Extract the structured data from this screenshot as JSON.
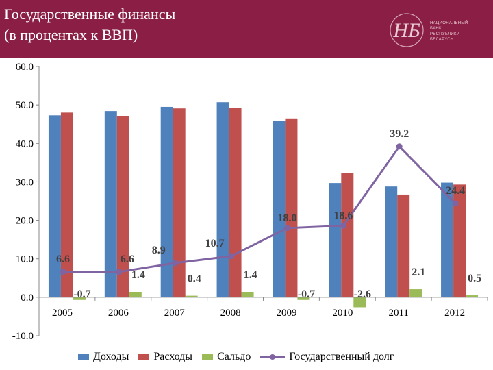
{
  "header": {
    "title_line1": "Государственные финансы",
    "title_line2": "(в процентах к ВВП)",
    "logo_monogram": "НБ",
    "logo_text": [
      "НАЦИОНАЛЬНЫЙ",
      "БАНК",
      "РЕСПУБЛИКИ",
      "БЕЛАРУСЬ"
    ]
  },
  "colors": {
    "banner": "#8a1e44",
    "revenue": "#4f81bd",
    "expenditure": "#c0504d",
    "balance": "#9bbb59",
    "debt": "#8064a2"
  },
  "chart_data": {
    "type": "bar",
    "categories": [
      "2005",
      "2006",
      "2007",
      "2008",
      "2009",
      "2010",
      "2011",
      "2012"
    ],
    "series": [
      {
        "name": "Доходы",
        "type": "bar",
        "values": [
          47.3,
          48.4,
          49.5,
          50.7,
          45.8,
          29.7,
          28.8,
          29.8
        ]
      },
      {
        "name": "Расходы",
        "type": "bar",
        "values": [
          48.0,
          47.0,
          49.1,
          49.3,
          46.5,
          32.3,
          26.7,
          29.3
        ]
      },
      {
        "name": "Сальдо",
        "type": "bar",
        "values": [
          -0.7,
          1.4,
          0.4,
          1.4,
          -0.7,
          -2.6,
          2.1,
          0.5
        ],
        "labels": [
          "-0.7",
          "1.4",
          "0.4",
          "1.4",
          "-0.7",
          "-2.6",
          "2.1",
          "0.5"
        ]
      },
      {
        "name": "Государственный долг",
        "type": "line",
        "values": [
          6.6,
          6.6,
          8.9,
          10.7,
          18.0,
          18.6,
          39.2,
          24.4
        ],
        "labels": [
          "6.6",
          "6.6",
          "8.9",
          "10.7",
          "18.0",
          "18.6",
          "39.2",
          "24.4"
        ]
      }
    ],
    "ylim": [
      -10,
      60
    ],
    "yticks": [
      "-10.0",
      "0.0",
      "10.0",
      "20.0",
      "30.0",
      "40.0",
      "50.0",
      "60.0"
    ],
    "grid": false,
    "legend": "bottom"
  }
}
